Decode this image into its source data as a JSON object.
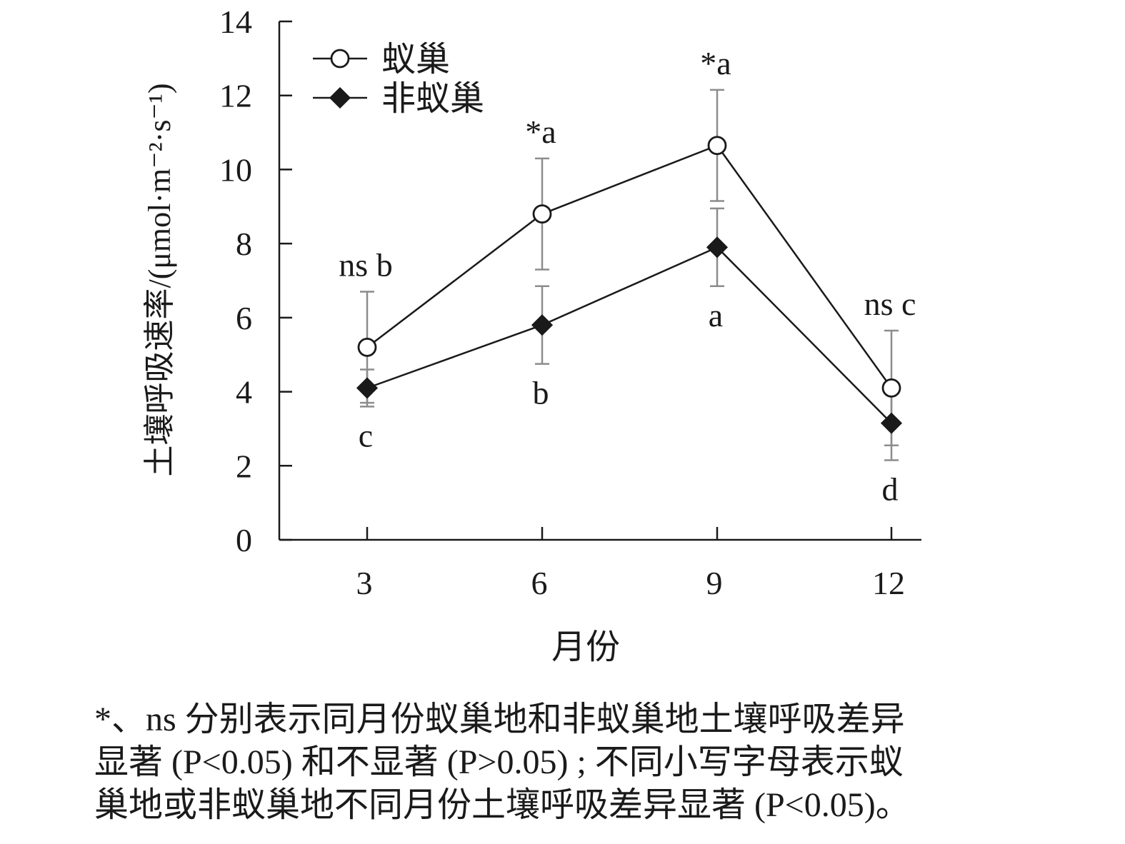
{
  "chart_data": {
    "type": "line",
    "xlabel": "月份",
    "ylabel": "土壤呼吸速率/(μmol·m⁻²·s⁻¹)",
    "x": [
      3,
      6,
      9,
      12
    ],
    "xticks": [
      "3",
      "6",
      "9",
      "12"
    ],
    "ylim": [
      0,
      14
    ],
    "yticks": [
      "0",
      "2",
      "4",
      "6",
      "8",
      "10",
      "12",
      "14"
    ],
    "grid": false,
    "legend_position": "top-left",
    "series": [
      {
        "name": "蚁巢",
        "marker": "open-circle",
        "values": [
          5.2,
          8.8,
          10.65,
          4.1
        ],
        "error": [
          1.5,
          1.5,
          1.5,
          1.55
        ],
        "labels": [
          "ns b",
          "*a",
          "*a",
          "ns c"
        ]
      },
      {
        "name": "非蚁巢",
        "marker": "filled-diamond",
        "values": [
          4.1,
          5.8,
          7.9,
          3.15
        ],
        "error": [
          0.5,
          1.05,
          1.05,
          1.0
        ],
        "labels": [
          "c",
          "b",
          "a",
          "d"
        ]
      }
    ]
  },
  "caption": {
    "line1": "*、ns 分别表示同月份蚁巢地和非蚁巢地土壤呼吸差异",
    "line2": "显著 (P<0.05) 和不显著 (P>0.05) ; 不同小写字母表示蚁",
    "line3": "巢地或非蚁巢地不同月份土壤呼吸差异显著 (P<0.05)。"
  }
}
